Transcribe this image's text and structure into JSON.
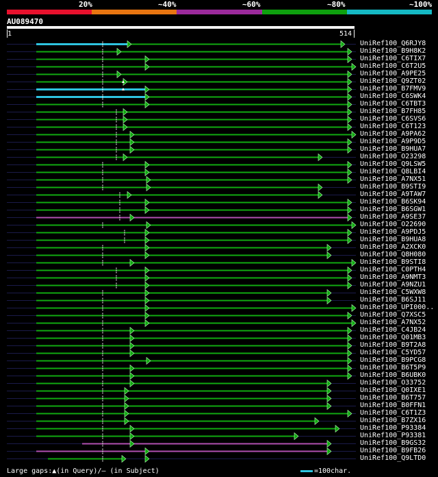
{
  "coverage_legend": {
    "colors": [
      "#e8112d",
      "#e87511",
      "#9b2a9b",
      "#0ea00e",
      "#15b9c4"
    ],
    "labels": [
      "20%",
      "~40%",
      "~60%",
      "~80%",
      "~100%"
    ]
  },
  "query": {
    "id": "AU089470",
    "start": "1",
    "end": "514"
  },
  "colors": {
    "green": "#11aa11",
    "cyan": "#2ec4e0",
    "purple": "#b14fb1",
    "background": "#000000"
  },
  "hits": [
    {
      "label": "UniRef100_Q6RJY8",
      "coverage": "~100%",
      "color": "cyan"
    },
    {
      "label": "UniRef100_B9H8K2",
      "coverage": "~80%",
      "color": "green"
    },
    {
      "label": "UniRef100_C6TIX7",
      "coverage": "~80%",
      "color": "green"
    },
    {
      "label": "UniRef100_C6T2U5",
      "coverage": "~80%",
      "color": "green"
    },
    {
      "label": "UniRef100_A9PE25",
      "coverage": "~80%",
      "color": "green"
    },
    {
      "label": "UniRef100_Q9ZT02",
      "coverage": "~80%",
      "color": "green"
    },
    {
      "label": "UniRef100_B7FMV9",
      "coverage": "~100%",
      "color": "cyan"
    },
    {
      "label": "UniRef100_C6SWK4",
      "coverage": "~100%",
      "color": "cyan"
    },
    {
      "label": "UniRef100_C6TBT3",
      "coverage": "~80%",
      "color": "green"
    },
    {
      "label": "UniRef100_B7FH85",
      "coverage": "~80%",
      "color": "green"
    },
    {
      "label": "UniRef100_C6SVS6",
      "coverage": "~80%",
      "color": "green"
    },
    {
      "label": "UniRef100_C6T123",
      "coverage": "~80%",
      "color": "green"
    },
    {
      "label": "UniRef100_A9PA62",
      "coverage": "~80%",
      "color": "green"
    },
    {
      "label": "UniRef100_A9P9D5",
      "coverage": "~80%",
      "color": "green"
    },
    {
      "label": "UniRef100_B9HUA7",
      "coverage": "~80%",
      "color": "green"
    },
    {
      "label": "UniRef100_O23298",
      "coverage": "~80%",
      "color": "green"
    },
    {
      "label": "UniRef100_Q9LSW5",
      "coverage": "~80%",
      "color": "green"
    },
    {
      "label": "UniRef100_Q8LBI4",
      "coverage": "~80%",
      "color": "green"
    },
    {
      "label": "UniRef100_A7NX51",
      "coverage": "~80%",
      "color": "green"
    },
    {
      "label": "UniRef100_B9STI9",
      "coverage": "~80%",
      "color": "green"
    },
    {
      "label": "UniRef100_A9TAW7",
      "coverage": "~80%",
      "color": "green"
    },
    {
      "label": "UniRef100_B6SK94",
      "coverage": "~80%",
      "color": "green"
    },
    {
      "label": "UniRef100_B6SGW1",
      "coverage": "~80%",
      "color": "green"
    },
    {
      "label": "UniRef100_A9SE37",
      "coverage": "~60%",
      "color": "purple"
    },
    {
      "label": "UniRef100_O22690",
      "coverage": "~80%",
      "color": "green"
    },
    {
      "label": "UniRef100_A9PDJ5",
      "coverage": "~80%",
      "color": "green"
    },
    {
      "label": "UniRef100_B9HUA8",
      "coverage": "~80%",
      "color": "green"
    },
    {
      "label": "UniRef100_A2XCK0",
      "coverage": "~80%",
      "color": "green"
    },
    {
      "label": "UniRef100_Q8H080",
      "coverage": "~80%",
      "color": "green"
    },
    {
      "label": "UniRef100_B9STI8",
      "coverage": "~80%",
      "color": "green"
    },
    {
      "label": "UniRef100_C0PTH4",
      "coverage": "~80%",
      "color": "green"
    },
    {
      "label": "UniRef100_A9NMT3",
      "coverage": "~80%",
      "color": "green"
    },
    {
      "label": "UniRef100_A9NZU1",
      "coverage": "~80%",
      "color": "green"
    },
    {
      "label": "UniRef100_C5WXW8",
      "coverage": "~80%",
      "color": "green"
    },
    {
      "label": "UniRef100_B6SJ11",
      "coverage": "~80%",
      "color": "green"
    },
    {
      "label": "UniRef100_UPI000..",
      "coverage": "~80%",
      "color": "green"
    },
    {
      "label": "UniRef100_Q7XSC5",
      "coverage": "~80%",
      "color": "green"
    },
    {
      "label": "UniRef100_A7NX52",
      "coverage": "~80%",
      "color": "green"
    },
    {
      "label": "UniRef100_C4JB24",
      "coverage": "~80%",
      "color": "green"
    },
    {
      "label": "UniRef100_Q01MB3",
      "coverage": "~80%",
      "color": "green"
    },
    {
      "label": "UniRef100_B9T2A8",
      "coverage": "~80%",
      "color": "green"
    },
    {
      "label": "UniRef100_C5YD57",
      "coverage": "~80%",
      "color": "green"
    },
    {
      "label": "UniRef100_B9PCG8",
      "coverage": "~80%",
      "color": "green"
    },
    {
      "label": "UniRef100_B6T5P9",
      "coverage": "~80%",
      "color": "green"
    },
    {
      "label": "UniRef100_B6UBK0",
      "coverage": "~80%",
      "color": "green"
    },
    {
      "label": "UniRef100_O33752",
      "coverage": "~80%",
      "color": "green"
    },
    {
      "label": "UniRef100_Q0IXE1",
      "coverage": "~80%",
      "color": "green"
    },
    {
      "label": "UniRef100_B6T757",
      "coverage": "~80%",
      "color": "green"
    },
    {
      "label": "UniRef100_B0FFN1",
      "coverage": "~80%",
      "color": "green"
    },
    {
      "label": "UniRef100_C6T1Z3",
      "coverage": "~80%",
      "color": "green"
    },
    {
      "label": "UniRef100_B7ZX16",
      "coverage": "~80%",
      "color": "green"
    },
    {
      "label": "UniRef100_P93384",
      "coverage": "~80%",
      "color": "green"
    },
    {
      "label": "UniRef100_P93381",
      "coverage": "~80%",
      "color": "green"
    },
    {
      "label": "UniRef100_B9GS32",
      "coverage": "~60%",
      "color": "purple"
    },
    {
      "label": "UniRef100_B9FB26",
      "coverage": "~60%",
      "color": "purple"
    },
    {
      "label": "UniRef100_Q9LTD0",
      "coverage": "~80%",
      "color": "green"
    }
  ],
  "footer": {
    "gaps_text": "Large gaps:▲(in Query)/– (in Subject)",
    "scale_text": "=100char."
  }
}
